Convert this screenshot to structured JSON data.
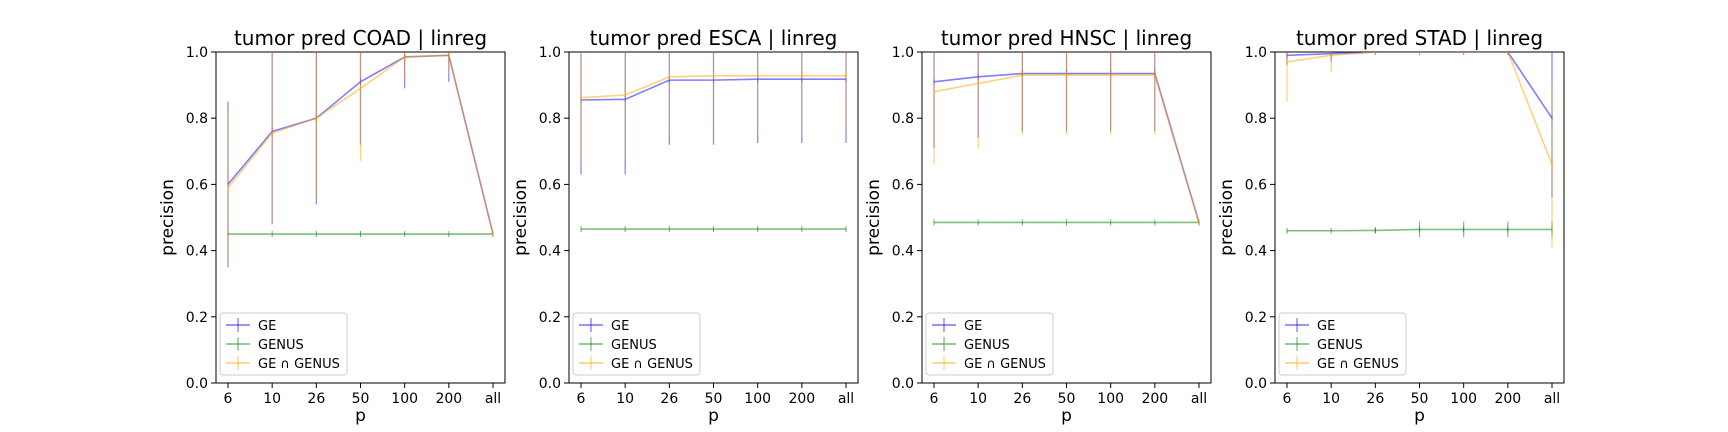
{
  "chart_data": [
    {
      "type": "line",
      "title": "tumor pred COAD | linreg",
      "xlabel": "p",
      "ylabel": "precision",
      "categories": [
        "6",
        "10",
        "26",
        "50",
        "100",
        "200",
        "all"
      ],
      "ylim": [
        0.0,
        1.0
      ],
      "yticks": [
        "0.0",
        "0.2",
        "0.4",
        "0.6",
        "0.8",
        "1.0"
      ],
      "legend_placement": "lower-left",
      "series": [
        {
          "name": "GE",
          "color": "#0000ff",
          "values": [
            0.6,
            0.76,
            0.8,
            0.91,
            0.985,
            0.99,
            0.45
          ],
          "err_low": [
            0.35,
            0.48,
            0.54,
            0.72,
            0.89,
            0.91,
            0.45
          ],
          "err_high": [
            0.85,
            1.0,
            1.0,
            1.0,
            1.0,
            1.0,
            0.45
          ]
        },
        {
          "name": "GENUS",
          "color": "#008000",
          "values": [
            0.45,
            0.45,
            0.45,
            0.45,
            0.45,
            0.45,
            0.45
          ],
          "err_low": [
            0.45,
            0.45,
            0.45,
            0.45,
            0.45,
            0.45,
            0.45
          ],
          "err_high": [
            0.45,
            0.45,
            0.45,
            0.45,
            0.45,
            0.45,
            0.45
          ]
        },
        {
          "name": "GE ∩ GENUS",
          "color": "#ffa500",
          "values": [
            0.59,
            0.755,
            0.8,
            0.89,
            0.985,
            0.99,
            0.45
          ],
          "err_low": [
            0.36,
            0.48,
            0.55,
            0.67,
            0.92,
            0.93,
            0.45
          ],
          "err_high": [
            0.83,
            1.0,
            1.0,
            1.0,
            1.0,
            1.0,
            0.45
          ]
        }
      ]
    },
    {
      "type": "line",
      "title": "tumor pred ESCA | linreg",
      "xlabel": "p",
      "ylabel": "precision",
      "categories": [
        "6",
        "10",
        "26",
        "50",
        "100",
        "200",
        "all"
      ],
      "ylim": [
        0.0,
        1.0
      ],
      "yticks": [
        "0.0",
        "0.2",
        "0.4",
        "0.6",
        "0.8",
        "1.0"
      ],
      "legend_placement": "lower-left",
      "series": [
        {
          "name": "GE",
          "color": "#0000ff",
          "values": [
            0.855,
            0.857,
            0.915,
            0.915,
            0.918,
            0.918,
            0.918
          ],
          "err_low": [
            0.63,
            0.63,
            0.72,
            0.72,
            0.725,
            0.725,
            0.725
          ],
          "err_high": [
            1.0,
            1.0,
            1.0,
            1.0,
            1.0,
            1.0,
            1.0
          ]
        },
        {
          "name": "GENUS",
          "color": "#008000",
          "values": [
            0.465,
            0.465,
            0.465,
            0.465,
            0.465,
            0.465,
            0.465
          ],
          "err_low": [
            0.465,
            0.465,
            0.465,
            0.465,
            0.465,
            0.465,
            0.465
          ],
          "err_high": [
            0.465,
            0.465,
            0.465,
            0.465,
            0.465,
            0.465,
            0.465
          ]
        },
        {
          "name": "GE ∩ GENUS",
          "color": "#ffa500",
          "values": [
            0.862,
            0.87,
            0.925,
            0.928,
            0.928,
            0.928,
            0.928
          ],
          "err_low": [
            0.66,
            0.67,
            0.75,
            0.755,
            0.755,
            0.755,
            0.755
          ],
          "err_high": [
            1.0,
            1.0,
            1.0,
            1.0,
            1.0,
            1.0,
            1.0
          ]
        }
      ]
    },
    {
      "type": "line",
      "title": "tumor pred HNSC | linreg",
      "xlabel": "p",
      "ylabel": "precision",
      "categories": [
        "6",
        "10",
        "26",
        "50",
        "100",
        "200",
        "all"
      ],
      "ylim": [
        0.0,
        1.0
      ],
      "yticks": [
        "0.0",
        "0.2",
        "0.4",
        "0.6",
        "0.8",
        "1.0"
      ],
      "legend_placement": "lower-left",
      "series": [
        {
          "name": "GE",
          "color": "#0000ff",
          "values": [
            0.91,
            0.925,
            0.935,
            0.935,
            0.935,
            0.935,
            0.485
          ],
          "err_low": [
            0.71,
            0.74,
            0.76,
            0.76,
            0.76,
            0.76,
            0.485
          ],
          "err_high": [
            1.0,
            1.0,
            1.0,
            1.0,
            1.0,
            1.0,
            0.485
          ]
        },
        {
          "name": "GENUS",
          "color": "#008000",
          "values": [
            0.485,
            0.485,
            0.485,
            0.485,
            0.485,
            0.485,
            0.485
          ],
          "err_low": [
            0.485,
            0.485,
            0.485,
            0.485,
            0.485,
            0.485,
            0.485
          ],
          "err_high": [
            0.485,
            0.485,
            0.485,
            0.485,
            0.485,
            0.485,
            0.485
          ]
        },
        {
          "name": "GE ∩ GENUS",
          "color": "#ffa500",
          "values": [
            0.88,
            0.905,
            0.93,
            0.93,
            0.93,
            0.93,
            0.485
          ],
          "err_low": [
            0.66,
            0.71,
            0.75,
            0.75,
            0.75,
            0.75,
            0.485
          ],
          "err_high": [
            1.0,
            1.0,
            1.0,
            1.0,
            1.0,
            1.0,
            0.485
          ]
        }
      ]
    },
    {
      "type": "line",
      "title": "tumor pred STAD | linreg",
      "xlabel": "p",
      "ylabel": "precision",
      "categories": [
        "6",
        "10",
        "26",
        "50",
        "100",
        "200",
        "all"
      ],
      "ylim": [
        0.0,
        1.0
      ],
      "yticks": [
        "0.0",
        "0.2",
        "0.4",
        "0.6",
        "0.8",
        "1.0"
      ],
      "legend_placement": "lower-left",
      "series": [
        {
          "name": "GE",
          "color": "#0000ff",
          "values": [
            0.99,
            0.995,
            1.0,
            1.0,
            1.0,
            1.0,
            0.8
          ],
          "err_low": [
            0.96,
            0.97,
            1.0,
            1.0,
            1.0,
            1.0,
            0.56
          ],
          "err_high": [
            1.0,
            1.0,
            1.0,
            1.0,
            1.0,
            1.0,
            1.0
          ]
        },
        {
          "name": "GENUS",
          "color": "#008000",
          "values": [
            0.46,
            0.46,
            0.461,
            0.464,
            0.464,
            0.464,
            0.464
          ],
          "err_low": [
            0.46,
            0.46,
            0.452,
            0.44,
            0.44,
            0.44,
            0.44
          ],
          "err_high": [
            0.46,
            0.46,
            0.47,
            0.488,
            0.488,
            0.488,
            0.488
          ]
        },
        {
          "name": "GE ∩ GENUS",
          "color": "#ffa500",
          "values": [
            0.97,
            0.99,
            1.0,
            1.0,
            1.0,
            1.0,
            0.66
          ],
          "err_low": [
            0.85,
            0.94,
            1.0,
            1.0,
            1.0,
            1.0,
            0.41
          ],
          "err_high": [
            1.0,
            1.0,
            1.0,
            1.0,
            1.0,
            1.0,
            0.91
          ]
        }
      ]
    }
  ]
}
